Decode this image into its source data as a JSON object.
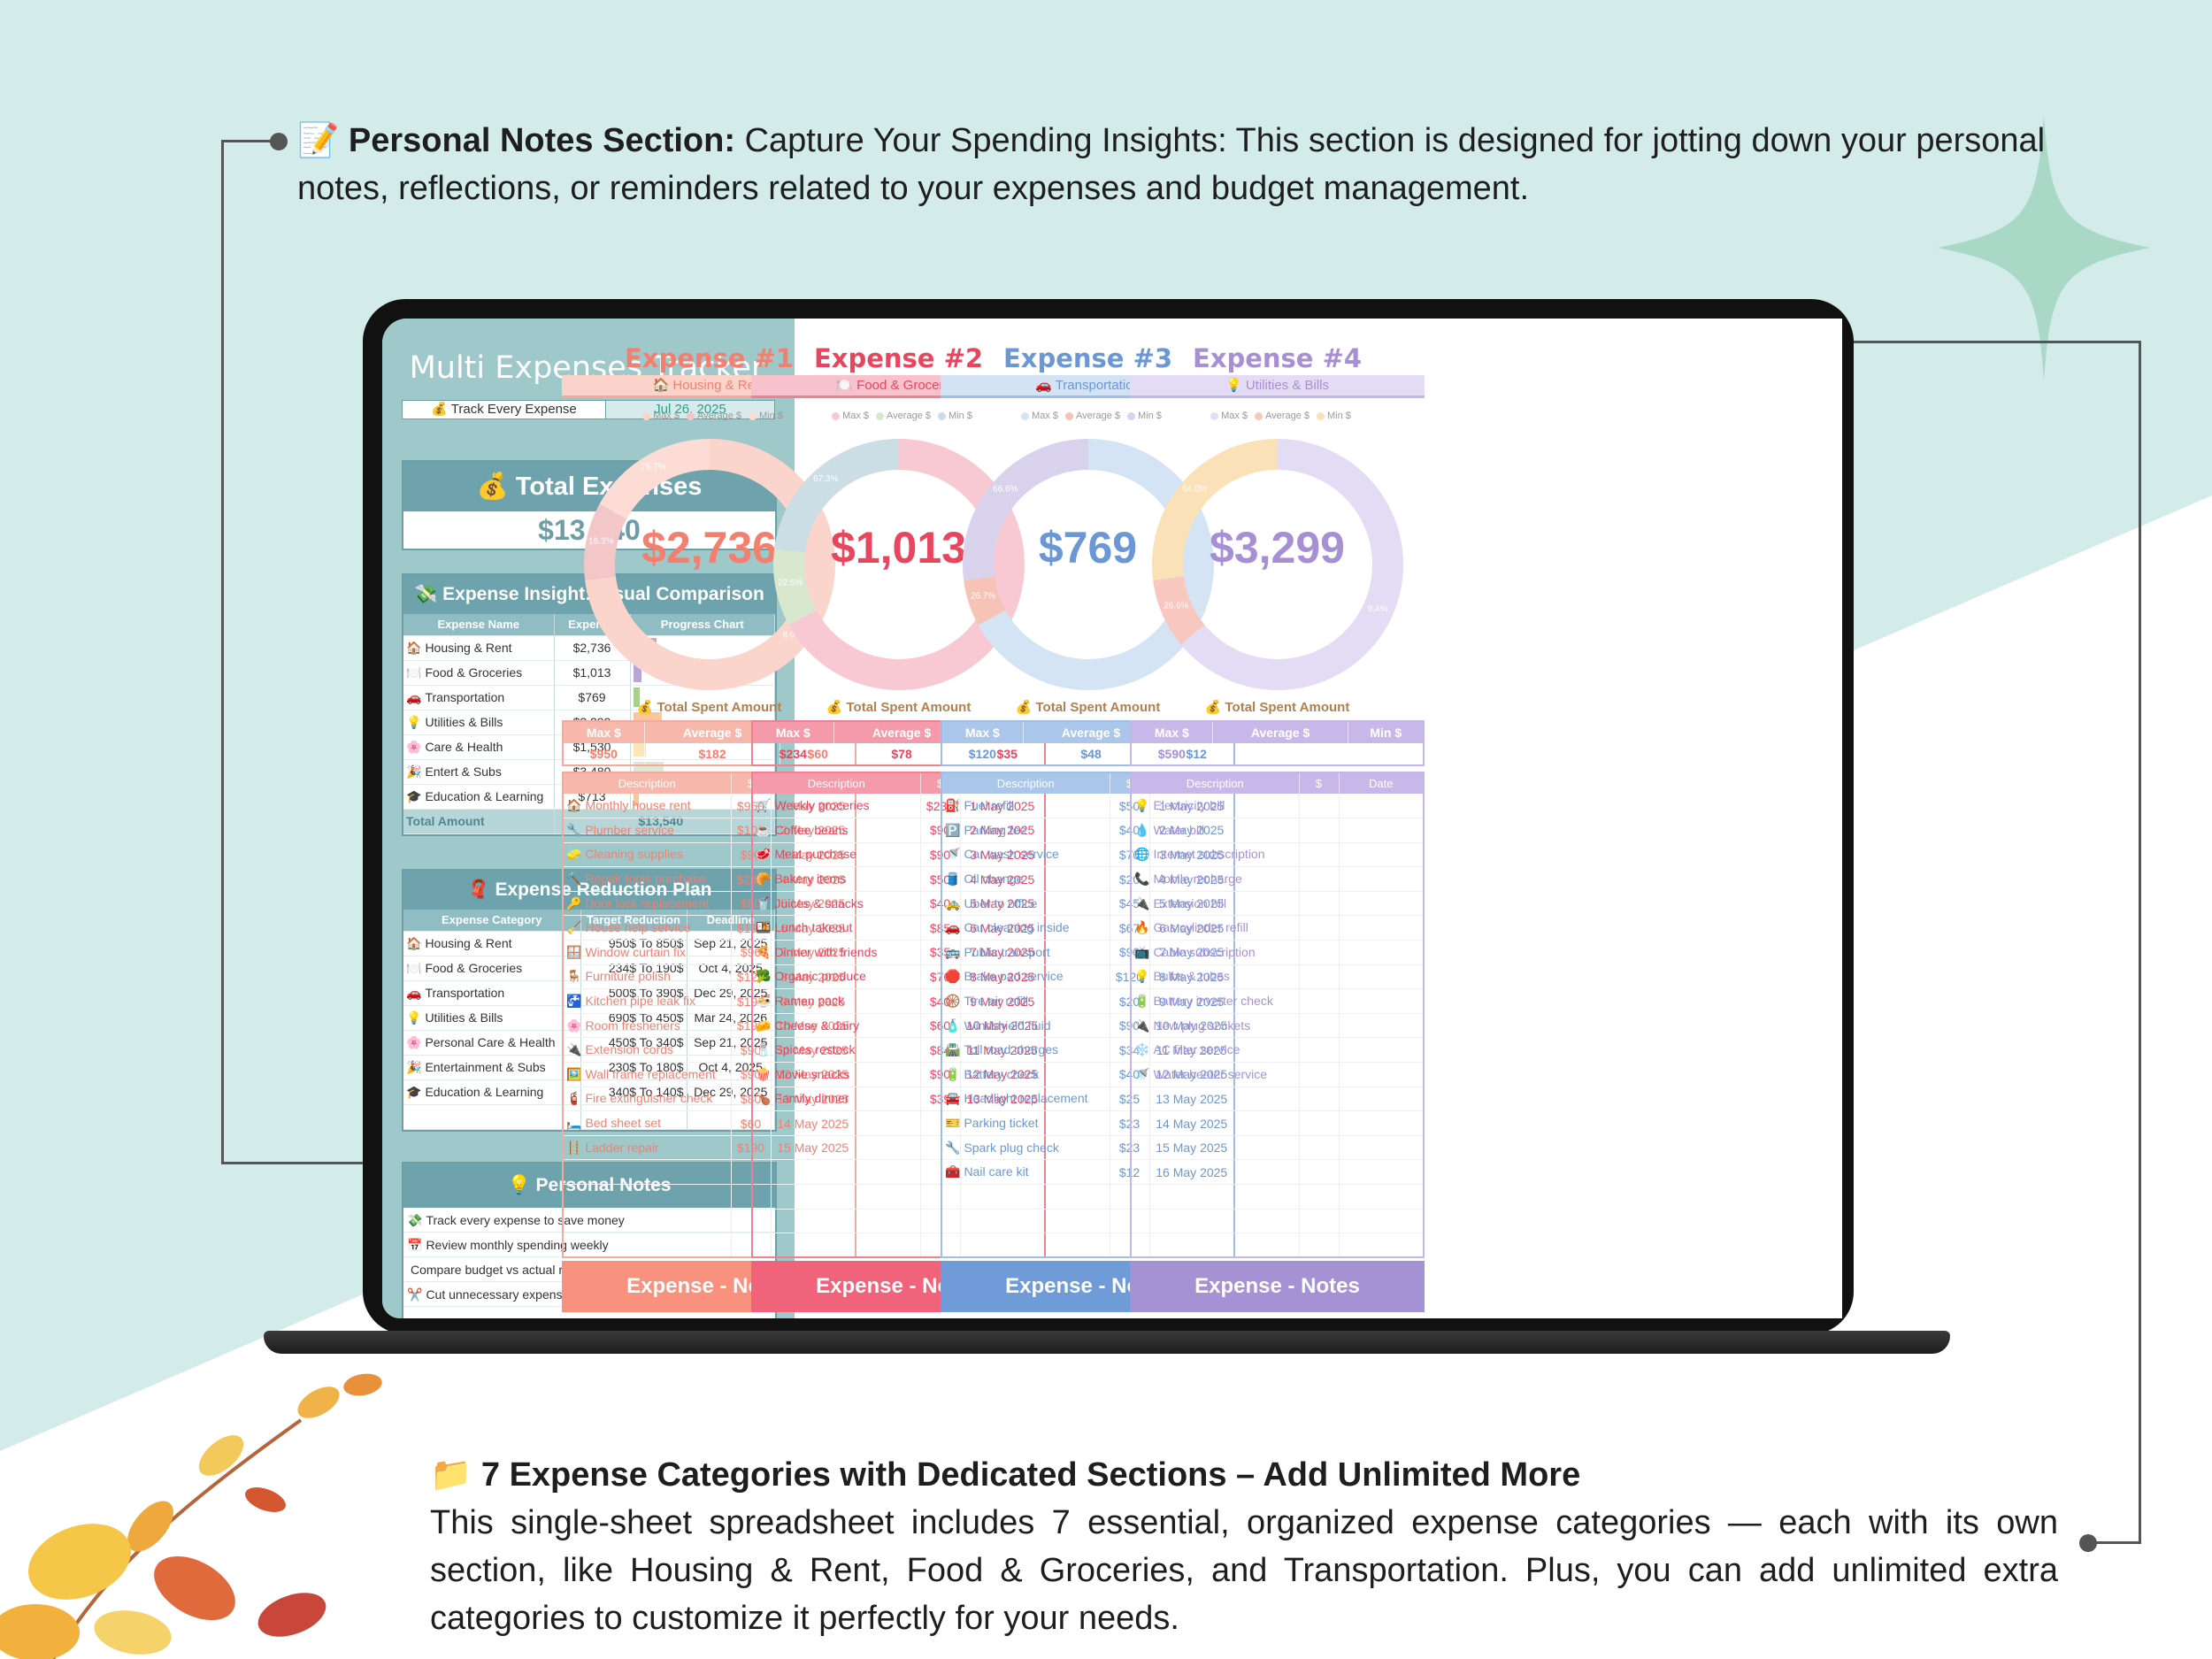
{
  "callout_top": {
    "icon": "📝",
    "bold": "Personal Notes Section:",
    "text": "  Capture Your Spending Insights: This section is designed for jotting down your personal notes, reflections, or reminders related to your expenses and budget management."
  },
  "callout_bottom": {
    "icon": "📁",
    "title": "7 Expense Categories with Dedicated Sections – Add Unlimited More",
    "text": " This single-sheet spreadsheet includes 7 essential, organized expense categories — each with its own section, like Housing & Rent, Food & Groceries, and Transportation. Plus, you can add unlimited extra categories to customize it perfectly for your needs."
  },
  "app": {
    "title": "Multi Expenses Tracker",
    "tagline": "💰 Track Every Expense",
    "date": "Jul 26, 2025"
  },
  "total": {
    "label": "💰 Total Expenses",
    "value": "$13,540"
  },
  "insight": {
    "title": "💸 Expense Insight: Visual Comparison",
    "headers": [
      "Expense Name",
      "Expense",
      "Progress Chart"
    ],
    "rows": [
      {
        "icon": "🏠",
        "name": "Housing & Rent",
        "value": "$2,736",
        "amount": 2736,
        "color": "#d6a3bd"
      },
      {
        "icon": "🍽️",
        "name": "Food & Groceries",
        "value": "$1,013",
        "amount": 1013,
        "color": "#b7a6d8"
      },
      {
        "icon": "🚗",
        "name": "Transportation",
        "value": "$769",
        "amount": 769,
        "color": "#a9cf8e"
      },
      {
        "icon": "💡",
        "name": "Utilities & Bills",
        "value": "$3,299",
        "amount": 3299,
        "color": "#f8c69b"
      },
      {
        "icon": "🌸",
        "name": "Care & Health",
        "value": "$1,530",
        "amount": 1530,
        "color": "#fbe7b6"
      },
      {
        "icon": "🎉",
        "name": "Entert & Subs",
        "value": "$3,480",
        "amount": 3480,
        "color": "#d9ecd3"
      },
      {
        "icon": "🎓",
        "name": "Education & Learning",
        "value": "$713",
        "amount": 713,
        "color": "#f8c69b"
      }
    ],
    "total_label": "Total Amount",
    "total_value": "$13,540"
  },
  "reduction": {
    "title": "🧣 Expense Reduction Plan",
    "headers": [
      "Expense Category",
      "Target Reduction",
      "Deadline"
    ],
    "rows": [
      {
        "icon": "🏠",
        "name": "Housing & Rent",
        "target": "950$ To 850$",
        "deadline": "Sep 21, 2025"
      },
      {
        "icon": "🍽️",
        "name": "Food & Groceries",
        "target": "234$ To 190$",
        "deadline": "Oct 4, 2025"
      },
      {
        "icon": "🚗",
        "name": "Transportation",
        "target": "500$ To 390$",
        "deadline": "Dec 29, 2025"
      },
      {
        "icon": "💡",
        "name": "Utilities & Bills",
        "target": "690$ To 450$",
        "deadline": "Mar 24, 2026"
      },
      {
        "icon": "🌸",
        "name": "Personal Care & Health",
        "target": "450$ To 340$",
        "deadline": "Sep 21, 2025"
      },
      {
        "icon": "🎉",
        "name": "Entertainment & Subs",
        "target": "230$ To 180$",
        "deadline": "Oct 4, 2025"
      },
      {
        "icon": "🎓",
        "name": "Education & Learning",
        "target": "340$ To 140$",
        "deadline": "Dec 29, 2025"
      }
    ]
  },
  "personal_notes": {
    "title": "💡 Personal Notes",
    "items": [
      {
        "icon": "💸",
        "text": "Track every expense to save money"
      },
      {
        "icon": "📅",
        "text": "Review monthly spending weekly"
      },
      {
        "icon": "",
        "text": "Compare budget vs actual regularly"
      },
      {
        "icon": "✂️",
        "text": "Cut unnecessary expenses often"
      }
    ]
  },
  "legend_labels": [
    "Max $",
    "Average $",
    "Min $"
  ],
  "total_spent_label": "💰 Total Spent Amount",
  "stat_headers": [
    "Max $",
    "Average $",
    "Min $"
  ],
  "row_headers": [
    "Description",
    "$",
    "Date"
  ],
  "notes_label": "Expense - Notes",
  "expenses": [
    {
      "title": "Expense #1",
      "category": "🏠 Housing & Rent",
      "total": "$2,736",
      "colors": {
        "main": "#f47f6e",
        "light": "#fbd3cb",
        "mid": "#f5a99c",
        "head": "#f7b8ab",
        "notes": "#f9917f"
      },
      "donut": [
        {
          "label": "Max $",
          "value": 73,
          "color": "#fbd5cc"
        },
        {
          "label": "Average $",
          "value": 10,
          "color": "#f3c6c8"
        },
        {
          "label": "Min $",
          "value": 17,
          "color": "#fcdcd5"
        }
      ],
      "donut_labels": [
        "8.0%",
        "16.3%",
        "75.7%"
      ],
      "max": "$950",
      "avg": "$182",
      "min": "$60",
      "rows": [
        {
          "icon": "🏠",
          "d": "Monthly house rent",
          "a": "$950",
          "t": "1 May 2025"
        },
        {
          "icon": "🔧",
          "d": "Plumber service",
          "a": "$100",
          "t": "2 May 2025"
        },
        {
          "icon": "🧽",
          "d": "Cleaning supplies",
          "a": "$90",
          "t": "3 May 2025"
        },
        {
          "icon": "🔨",
          "d": "Repair tools purchase",
          "a": "$240",
          "t": "4 May 2025"
        },
        {
          "icon": "🔑",
          "d": "Door lock replacement",
          "a": "$60",
          "t": "5 May 2025"
        },
        {
          "icon": "🧹",
          "d": "House help service",
          "a": "$190",
          "t": "6 May 2025"
        },
        {
          "icon": "🪟",
          "d": "Window curtain fix",
          "a": "$96",
          "t": "7 May 2025"
        },
        {
          "icon": "🪑",
          "d": "Furniture polish",
          "a": "$120",
          "t": "8 May 2025"
        },
        {
          "icon": "🚰",
          "d": "Kitchen pipe leak fix",
          "a": "$190",
          "t": "9 May 2025"
        },
        {
          "icon": "🌸",
          "d": "Room fresheners",
          "a": "$190",
          "t": "10 May 2025"
        },
        {
          "icon": "🔌",
          "d": "Extension cords",
          "a": "$90",
          "t": "11 May 2025"
        },
        {
          "icon": "🖼️",
          "d": "Wall frame replacement",
          "a": "$90",
          "t": "12 May 2025"
        },
        {
          "icon": "🧯",
          "d": "Fire extinguisher check",
          "a": "$80",
          "t": "13 May 2025"
        },
        {
          "icon": "🛏️",
          "d": "Bed sheet set",
          "a": "$60",
          "t": "14 May 2025"
        },
        {
          "icon": "🪜",
          "d": "Ladder repair",
          "a": "$190",
          "t": "15 May 2025"
        }
      ]
    },
    {
      "title": "Expense #2",
      "category": "🍽️ Food & Groceries",
      "total": "$1,013",
      "colors": {
        "main": "#e8455e",
        "light": "#f8c2cd",
        "mid": "#f07f94",
        "head": "#f59aab",
        "notes": "#f0637a"
      },
      "donut": [
        {
          "label": "Max $",
          "value": 67,
          "color": "#f8c8d3"
        },
        {
          "label": "Average $",
          "value": 10,
          "color": "#d7e8cf"
        },
        {
          "label": "Min $",
          "value": 23,
          "color": "#cbdde5"
        }
      ],
      "donut_labels": [
        "10.1%",
        "22.5%",
        "67.3%"
      ],
      "max": "$234",
      "avg": "$78",
      "min": "$35",
      "rows": [
        {
          "icon": "🛒",
          "d": "Weekly groceries",
          "a": "$234",
          "t": "1 May 2025"
        },
        {
          "icon": "☕",
          "d": "Coffee beans",
          "a": "$90",
          "t": "2 May 2025"
        },
        {
          "icon": "🥩",
          "d": "Meat purchase",
          "a": "$90",
          "t": "3 May 2025"
        },
        {
          "icon": "🥐",
          "d": "Bakery items",
          "a": "$50",
          "t": "4 May 2025"
        },
        {
          "icon": "🥤",
          "d": "Juices & snacks",
          "a": "$40",
          "t": "5 May 2025"
        },
        {
          "icon": "🍱",
          "d": "Lunch takeout",
          "a": "$85",
          "t": "6 May 2025"
        },
        {
          "icon": "🍕",
          "d": "Dinner with friends",
          "a": "$35",
          "t": "7 May 2025"
        },
        {
          "icon": "🥦",
          "d": "Organic produce",
          "a": "$76",
          "t": "8 May 2025"
        },
        {
          "icon": "🍜",
          "d": "Ramen pack",
          "a": "$40",
          "t": "9 May 2025"
        },
        {
          "icon": "🧀",
          "d": "Cheese & dairy",
          "a": "$60",
          "t": "10 May 2025"
        },
        {
          "icon": "🧂",
          "d": "Spices restock",
          "a": "$84",
          "t": "11 May 2025"
        },
        {
          "icon": "🍿",
          "d": "Movie snacks",
          "a": "$90",
          "t": "12 May 2025"
        },
        {
          "icon": "🍗",
          "d": "Family dinner",
          "a": "$39",
          "t": "13 May 2025"
        }
      ]
    },
    {
      "title": "Expense #3",
      "category": "🚗 Transportation",
      "total": "$769",
      "colors": {
        "main": "#6b97d6",
        "light": "#d3e3f4",
        "mid": "#9fbde6",
        "head": "#aac6ea",
        "notes": "#6f9bd9"
      },
      "donut": [
        {
          "label": "Max $",
          "value": 67,
          "color": "#d5e4f4"
        },
        {
          "label": "Average $",
          "value": 6,
          "color": "#f6c3b6"
        },
        {
          "label": "Min $",
          "value": 27,
          "color": "#d9d2ec"
        }
      ],
      "donut_labels": [
        "6.7%",
        "26.7%",
        "66.6%"
      ],
      "max": "$120",
      "avg": "$48",
      "min": "$12",
      "rows": [
        {
          "icon": "⛽",
          "d": "Fuel refill",
          "a": "$50",
          "t": "1 May 2025"
        },
        {
          "icon": "🅿️",
          "d": "Parking fee",
          "a": "$40",
          "t": "2 May 2025"
        },
        {
          "icon": "🚿",
          "d": "Car wash service",
          "a": "$70",
          "t": "3 May 2025"
        },
        {
          "icon": "🛢️",
          "d": "Oil change",
          "a": "$20",
          "t": "4 May 2025"
        },
        {
          "icon": "🚕",
          "d": "Uber to office",
          "a": "$45",
          "t": "5 May 2025"
        },
        {
          "icon": "🚗",
          "d": "Car cleaning inside",
          "a": "$67",
          "t": "6 May 2025"
        },
        {
          "icon": "🚌",
          "d": "Public transport",
          "a": "$90",
          "t": "7 May 2025"
        },
        {
          "icon": "🛑",
          "d": "Brake pad service",
          "a": "$120",
          "t": "8 May 2025"
        },
        {
          "icon": "🛞",
          "d": "Tire air refill",
          "a": "$20",
          "t": "9 May 2025"
        },
        {
          "icon": "🧴",
          "d": "Windshield fluid",
          "a": "$90",
          "t": "10 May 2025"
        },
        {
          "icon": "🛣️",
          "d": "Toll road charges",
          "a": "$34",
          "t": "11 May 2025"
        },
        {
          "icon": "🔋",
          "d": "Battery check",
          "a": "$40",
          "t": "12 May 2025"
        },
        {
          "icon": "🚘",
          "d": "Headlight replacement",
          "a": "$25",
          "t": "13 May 2025"
        },
        {
          "icon": "🎫",
          "d": "Parking ticket",
          "a": "$23",
          "t": "14 May 2025"
        },
        {
          "icon": "🔧",
          "d": "Spark plug check",
          "a": "$23",
          "t": "15 May 2025"
        },
        {
          "icon": "🧰",
          "d": "Nail care kit",
          "a": "$12",
          "t": "16 May 2025"
        }
      ]
    },
    {
      "title": "Expense #4",
      "category": "💡 Utilities & Bills",
      "total": "$3,299",
      "colors": {
        "main": "#a78fd6",
        "light": "#e4dcf4",
        "mid": "#c6b6e8",
        "head": "#c8b8ea",
        "notes": "#a592d4"
      },
      "donut": [
        {
          "label": "Max $",
          "value": 64,
          "color": "#e4dcf4"
        },
        {
          "label": "Average $",
          "value": 9,
          "color": "#f8c8c0"
        },
        {
          "label": "Min $",
          "value": 27,
          "color": "#fbe1b8"
        }
      ],
      "donut_labels": [
        "9.4%",
        "26.6%",
        "64.0%"
      ],
      "max": "$590",
      "avg": "",
      "min": "",
      "rows": [
        {
          "icon": "💡",
          "d": "Electricity bill",
          "a": "",
          "t": ""
        },
        {
          "icon": "💧",
          "d": "Water bill",
          "a": "",
          "t": ""
        },
        {
          "icon": "🌐",
          "d": "Internet subscription",
          "a": "",
          "t": ""
        },
        {
          "icon": "📞",
          "d": "Mobile recharge",
          "a": "",
          "t": ""
        },
        {
          "icon": "🔌",
          "d": "Extension bill",
          "a": "",
          "t": ""
        },
        {
          "icon": "🔥",
          "d": "Gas cylinder refill",
          "a": "",
          "t": ""
        },
        {
          "icon": "📺",
          "d": "Cable subscription",
          "a": "",
          "t": ""
        },
        {
          "icon": "💡",
          "d": "Bulbs & tubes",
          "a": "",
          "t": ""
        },
        {
          "icon": "🔋",
          "d": "Battery inverter check",
          "a": "",
          "t": ""
        },
        {
          "icon": "🔌",
          "d": "New plug sockets",
          "a": "",
          "t": ""
        },
        {
          "icon": "❄️",
          "d": "AC filter service",
          "a": "",
          "t": ""
        },
        {
          "icon": "🚿",
          "d": "Water heater service",
          "a": "",
          "t": ""
        }
      ]
    }
  ]
}
